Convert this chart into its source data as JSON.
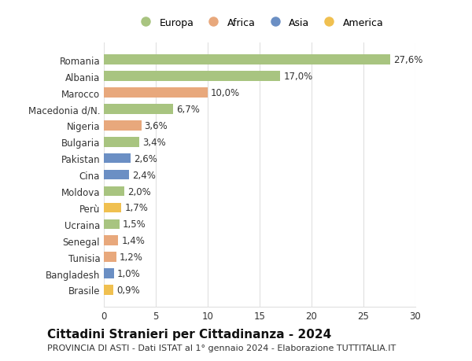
{
  "categories": [
    "Brasile",
    "Bangladesh",
    "Tunisia",
    "Senegal",
    "Ucraina",
    "Perù",
    "Moldova",
    "Cina",
    "Pakistan",
    "Bulgaria",
    "Nigeria",
    "Macedonia d/N.",
    "Marocco",
    "Albania",
    "Romania"
  ],
  "values": [
    0.9,
    1.0,
    1.2,
    1.4,
    1.5,
    1.7,
    2.0,
    2.4,
    2.6,
    3.4,
    3.6,
    6.7,
    10.0,
    17.0,
    27.6
  ],
  "labels": [
    "0,9%",
    "1,0%",
    "1,2%",
    "1,4%",
    "1,5%",
    "1,7%",
    "2,0%",
    "2,4%",
    "2,6%",
    "3,4%",
    "3,6%",
    "6,7%",
    "10,0%",
    "17,0%",
    "27,6%"
  ],
  "continents": [
    "America",
    "Asia",
    "Africa",
    "Africa",
    "Europa",
    "America",
    "Europa",
    "Asia",
    "Asia",
    "Europa",
    "Africa",
    "Europa",
    "Africa",
    "Europa",
    "Europa"
  ],
  "continent_colors": {
    "Europa": "#a8c480",
    "Africa": "#e8a87c",
    "Asia": "#6b8fc4",
    "America": "#f0c050"
  },
  "legend_order": [
    "Europa",
    "Africa",
    "Asia",
    "America"
  ],
  "title": "Cittadini Stranieri per Cittadinanza - 2024",
  "subtitle": "PROVINCIA DI ASTI - Dati ISTAT al 1° gennaio 2024 - Elaborazione TUTTITALIA.IT",
  "xlim": [
    0,
    30
  ],
  "xticks": [
    0,
    5,
    10,
    15,
    20,
    25,
    30
  ],
  "background_color": "#ffffff",
  "grid_color": "#e0e0e0",
  "title_fontsize": 11,
  "subtitle_fontsize": 8,
  "label_fontsize": 8.5,
  "tick_fontsize": 8.5
}
